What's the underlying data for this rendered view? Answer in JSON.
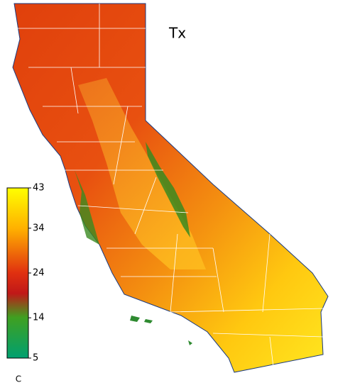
{
  "title": "Tx",
  "colorbar": {
    "range": [
      5,
      43
    ],
    "ticks": [
      43,
      34,
      24,
      14,
      5
    ],
    "unit": "C"
  }
}
